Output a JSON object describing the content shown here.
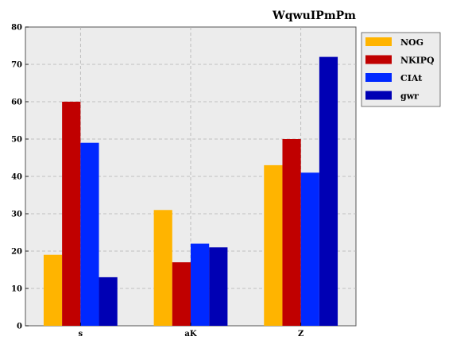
{
  "chart_data": {
    "type": "bar",
    "title": "WqwuIPmPm",
    "xlabel": "",
    "ylabel": "",
    "categories": [
      "s",
      "aK",
      "Z"
    ],
    "series": [
      {
        "name": "NOG",
        "values": [
          19,
          31,
          43
        ],
        "color": "#ffb400"
      },
      {
        "name": "NKIPQ",
        "values": [
          60,
          17,
          50
        ],
        "color": "#c00000"
      },
      {
        "name": "CIAt",
        "values": [
          49,
          22,
          41
        ],
        "color": "#0028ff"
      },
      {
        "name": "gwr",
        "values": [
          13,
          21,
          72
        ],
        "color": "#0000b4"
      }
    ],
    "ylim": [
      0,
      80
    ],
    "yticks": [
      0,
      10,
      20,
      30,
      40,
      50,
      60,
      70,
      80
    ],
    "grid": true,
    "legend_position": "top-right",
    "plot_background": "#ececec"
  }
}
